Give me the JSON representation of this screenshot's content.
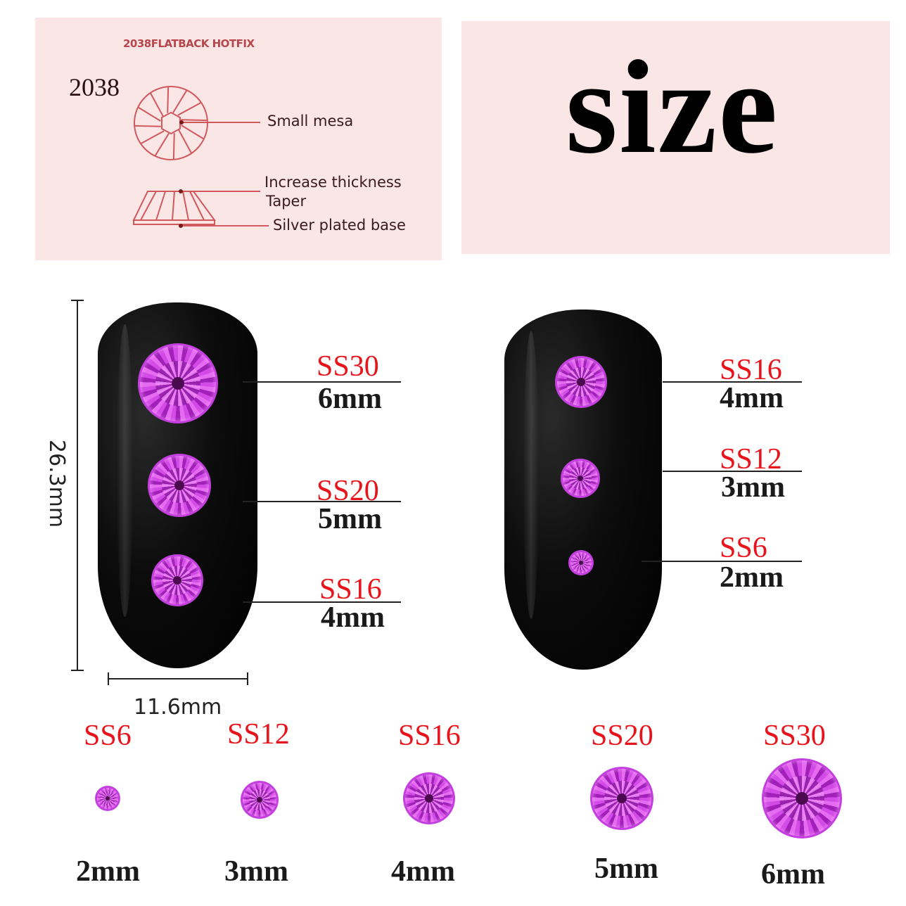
{
  "diagram_panel": {
    "header": "2038FLATBACK HOTFIX",
    "model": "2038",
    "labels": [
      "Small mesa",
      "Increase thickness",
      "Taper",
      "Silver plated base"
    ]
  },
  "title": "size",
  "dimensions": {
    "height": "26.3mm",
    "width": "11.6mm"
  },
  "left_nail": [
    {
      "code": "SS30",
      "size": "6mm"
    },
    {
      "code": "SS20",
      "size": "5mm"
    },
    {
      "code": "SS16",
      "size": "4mm"
    }
  ],
  "right_nail": [
    {
      "code": "SS16",
      "size": "4mm"
    },
    {
      "code": "SS12",
      "size": "3mm"
    },
    {
      "code": "SS6",
      "size": "2mm"
    }
  ],
  "chart_row": [
    {
      "code": "SS6",
      "size": "2mm"
    },
    {
      "code": "SS12",
      "size": "3mm"
    },
    {
      "code": "SS16",
      "size": "4mm"
    },
    {
      "code": "SS20",
      "size": "5mm"
    },
    {
      "code": "SS30",
      "size": "6mm"
    }
  ],
  "colors": {
    "code_label": "#e8141b",
    "panel_bg": "#fbe6e6",
    "gem": "#b530d0",
    "nail": "#000000"
  }
}
